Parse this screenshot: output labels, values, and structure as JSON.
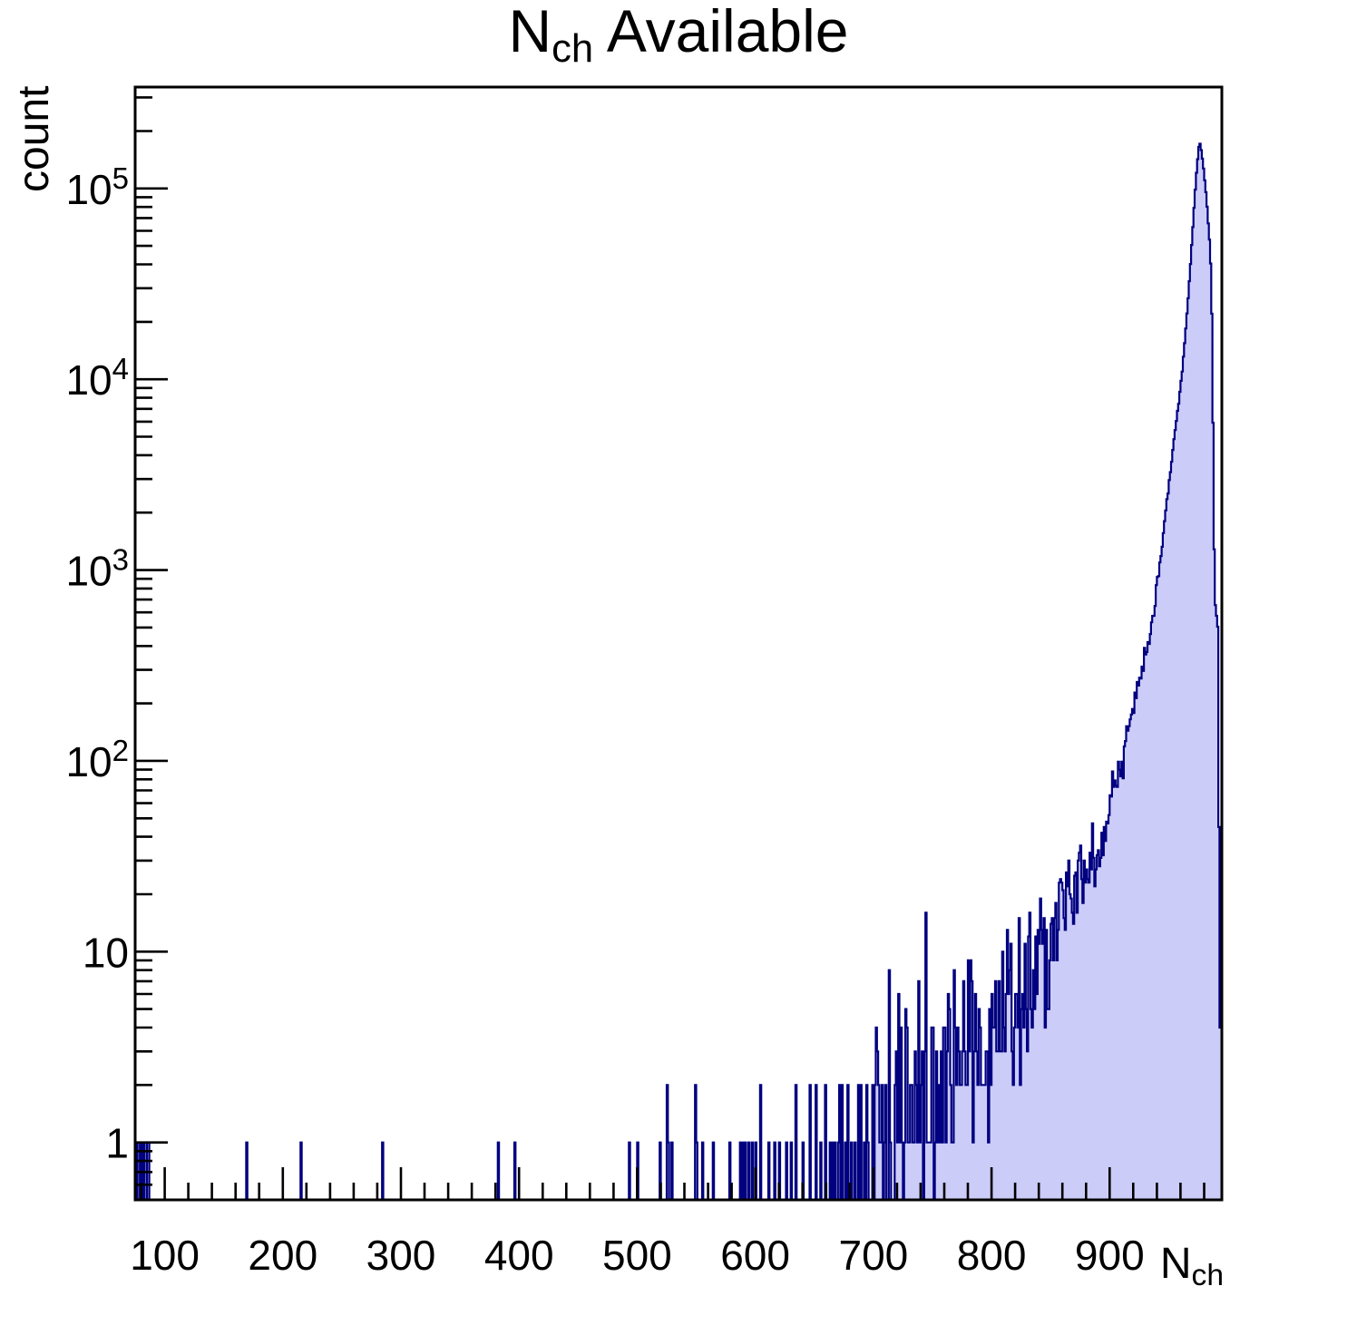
{
  "page": {
    "background": "#ffffff"
  },
  "labels": {
    "title_prefix": "N",
    "title_sub": "ch",
    "title_suffix": " Available",
    "y_axis_title": "count",
    "x_axis_title_prefix": "N",
    "x_axis_title_sub": "ch"
  },
  "chart_data": {
    "type": "bar",
    "subtype": "histogram",
    "title": "N_ch Available",
    "xlabel": "N_ch",
    "ylabel": "count",
    "x_range": [
      75,
      995
    ],
    "y_range": [
      0.5,
      340000
    ],
    "y_scale": "log",
    "bin_width": 1,
    "grid": false,
    "legend": null,
    "peak": {
      "x": 976,
      "count": 175000
    },
    "colors": {
      "fill": "#ccccf8",
      "line": "#000080",
      "axis": "#000000",
      "text": "#000000",
      "background": "#ffffff"
    },
    "x_ticks": {
      "major": [
        100,
        200,
        300,
        400,
        500,
        600,
        700,
        800,
        900
      ],
      "major_labels": [
        "100",
        "200",
        "300",
        "400",
        "500",
        "600",
        "700",
        "800",
        "900"
      ],
      "minor_step": 20
    },
    "y_ticks": [
      {
        "value": 1,
        "base": "1",
        "exp": ""
      },
      {
        "value": 10,
        "base": "10",
        "exp": ""
      },
      {
        "value": 100,
        "base": "10",
        "exp": "2"
      },
      {
        "value": 1000,
        "base": "10",
        "exp": "3"
      },
      {
        "value": 10000,
        "base": "10",
        "exp": "4"
      },
      {
        "value": 100000,
        "base": "10",
        "exp": "5"
      }
    ],
    "isolated_bars": [
      [
        75,
        1
      ],
      [
        77,
        1
      ],
      [
        78,
        1
      ],
      [
        80,
        1
      ],
      [
        82,
        1
      ],
      [
        85,
        1
      ],
      [
        86,
        1
      ],
      [
        169,
        1
      ],
      [
        215,
        1
      ],
      [
        284,
        1
      ],
      [
        382,
        1
      ],
      [
        396,
        1
      ],
      [
        493,
        1
      ],
      [
        500,
        1
      ],
      [
        519,
        1
      ],
      [
        525,
        2
      ],
      [
        526,
        1
      ],
      [
        529,
        1
      ],
      [
        549,
        2
      ],
      [
        550,
        1
      ],
      [
        555,
        1
      ],
      [
        564,
        1
      ],
      [
        578,
        1
      ],
      [
        587,
        1
      ],
      [
        589,
        1
      ],
      [
        591,
        1
      ],
      [
        594,
        1
      ],
      [
        597,
        1
      ],
      [
        600,
        1
      ],
      [
        604,
        2
      ],
      [
        611,
        1
      ],
      [
        616,
        1
      ],
      [
        620,
        1
      ],
      [
        626,
        1
      ],
      [
        630,
        1
      ],
      [
        634,
        2
      ],
      [
        640,
        1
      ],
      [
        646,
        2
      ],
      [
        651,
        2
      ],
      [
        655,
        1
      ],
      [
        659,
        2
      ],
      [
        663,
        1
      ],
      [
        665,
        1
      ],
      [
        667,
        1
      ],
      [
        670,
        1
      ],
      [
        671,
        2
      ],
      [
        673,
        2
      ],
      [
        676,
        1
      ],
      [
        678,
        2
      ],
      [
        681,
        1
      ],
      [
        684,
        1
      ],
      [
        687,
        2
      ],
      [
        689,
        2
      ],
      [
        692,
        1
      ]
    ],
    "envelope_points": [
      [
        694,
        1
      ],
      [
        705,
        1.2
      ],
      [
        715,
        1.3
      ],
      [
        725,
        1.5
      ],
      [
        735,
        1.8
      ],
      [
        745,
        2
      ],
      [
        755,
        2.2
      ],
      [
        765,
        2.4
      ],
      [
        775,
        2.7
      ],
      [
        785,
        2.9
      ],
      [
        795,
        3.1
      ],
      [
        800,
        3.5
      ],
      [
        806,
        4
      ],
      [
        812,
        4.5
      ],
      [
        818,
        5.5
      ],
      [
        824,
        7
      ],
      [
        830,
        8
      ],
      [
        836,
        9.5
      ],
      [
        842,
        10
      ],
      [
        848,
        11
      ],
      [
        854,
        13
      ],
      [
        860,
        15
      ],
      [
        866,
        18
      ],
      [
        872,
        22
      ],
      [
        877,
        25
      ],
      [
        882,
        28
      ],
      [
        887,
        33
      ],
      [
        892,
        37
      ],
      [
        897,
        45
      ],
      [
        903,
        60
      ],
      [
        908,
        80
      ],
      [
        913,
        115
      ],
      [
        918,
        160
      ],
      [
        923,
        224
      ],
      [
        928,
        300
      ],
      [
        934,
        440
      ],
      [
        938,
        650
      ],
      [
        941,
        950
      ],
      [
        944,
        1300
      ],
      [
        947,
        1900
      ],
      [
        950,
        2800
      ],
      [
        953,
        4000
      ],
      [
        956,
        5800
      ],
      [
        959,
        8000
      ],
      [
        962,
        12000
      ],
      [
        965,
        20000
      ],
      [
        968,
        36000
      ],
      [
        971,
        70000
      ],
      [
        973,
        110000
      ],
      [
        975,
        155000
      ],
      [
        976,
        175000
      ],
      [
        977,
        168000
      ],
      [
        978,
        152000
      ],
      [
        980,
        120000
      ],
      [
        982,
        88000
      ],
      [
        984,
        60000
      ],
      [
        985,
        48000
      ],
      [
        986,
        34000
      ],
      [
        987,
        14000
      ],
      [
        988,
        2500
      ],
      [
        989,
        660
      ],
      [
        990,
        650
      ],
      [
        991,
        510
      ],
      [
        992,
        500
      ],
      [
        993,
        4
      ],
      [
        995,
        4
      ]
    ]
  }
}
